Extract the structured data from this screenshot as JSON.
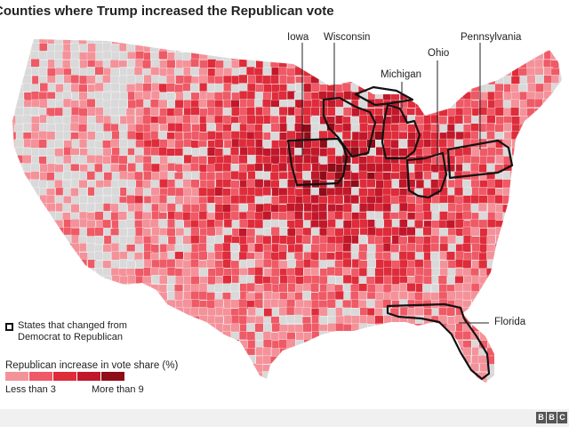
{
  "title": "Counties where Trump increased the Republican vote",
  "map": {
    "region": "United States (contiguous)",
    "highlighted_states": [
      {
        "name": "Iowa",
        "label": "Iowa"
      },
      {
        "name": "Wisconsin",
        "label": "Wisconsin"
      },
      {
        "name": "Michigan",
        "label": "Michigan"
      },
      {
        "name": "Ohio",
        "label": "Ohio"
      },
      {
        "name": "Pennsylvania",
        "label": "Pennsylvania"
      },
      {
        "name": "Florida",
        "label": "Florida"
      }
    ],
    "colors": {
      "no_increase": "#d9d9d9",
      "background": "#ffffff",
      "outline": "#111111"
    }
  },
  "legend": {
    "changed_states_label": "States that changed from Democrat to Republican",
    "scale_title": "Republican increase in vote share (%)",
    "scale_low_label": "Less than 3",
    "scale_high_label": "More than 9",
    "scale_colors": [
      "#f4929a",
      "#ee5a66",
      "#de2c3b",
      "#c0182a",
      "#8e0d18"
    ]
  },
  "footer": {
    "logo_letters": [
      "B",
      "B",
      "C"
    ]
  }
}
